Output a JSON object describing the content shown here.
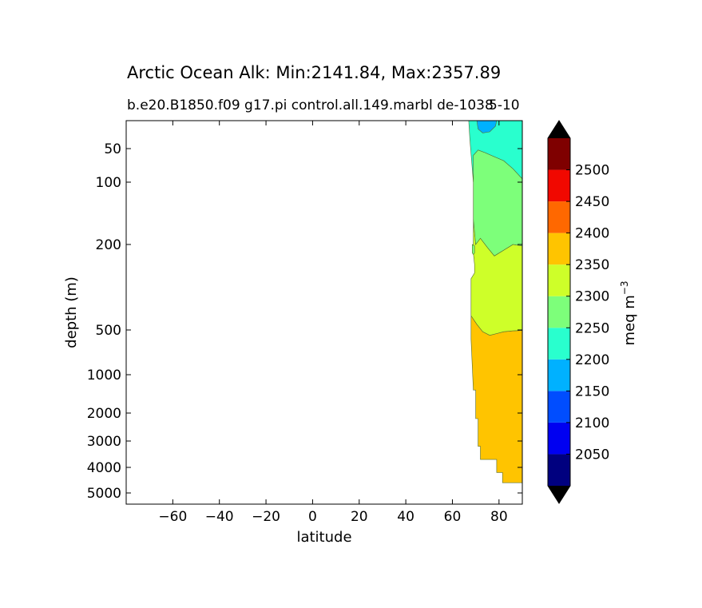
{
  "chart_data": {
    "type": "contour",
    "title": "Arctic Ocean Alk: Min:2141.84, Max:2357.89",
    "subtitle": "b.e20.B1850.f09 g17.pi control.all.149.marbl de-1038",
    "subtitle_overlay": "5-10",
    "xlabel": "latitude",
    "ylabel": "depth (m)",
    "xlim": [
      -80,
      90
    ],
    "x_ticks": [
      -60,
      -40,
      -20,
      0,
      20,
      40,
      60,
      80
    ],
    "x_tick_labels": [
      "−60",
      "−40",
      "−20",
      "0",
      "20",
      "40",
      "60",
      "80"
    ],
    "y_ticks": [
      50,
      100,
      200,
      500,
      1000,
      2000,
      3000,
      4000,
      5000
    ],
    "y_tick_labels": [
      "50",
      "100",
      "200",
      "500",
      "1000",
      "2000",
      "3000",
      "4000",
      "5000"
    ],
    "y_scale": "nonlinear (depth increases downward)",
    "contour_levels": [
      2000,
      2050,
      2100,
      2150,
      2200,
      2250,
      2300,
      2350,
      2400,
      2450,
      2500,
      2550
    ],
    "colorbar": {
      "label": "meq m",
      "label_exponent": "−3",
      "extend": "both",
      "tick_labels": [
        "2050",
        "2100",
        "2150",
        "2200",
        "2250",
        "2300",
        "2350",
        "2400",
        "2450",
        "2500"
      ],
      "colors": [
        "#00007f",
        "#0000f1",
        "#004dff",
        "#00b1ff",
        "#29ffce",
        "#7dff7a",
        "#ceff29",
        "#ffc400",
        "#ff6800",
        "#f10800",
        "#7f0000"
      ],
      "extend_color": "#000000"
    },
    "regions": [
      {
        "band": "2150–2200",
        "color": "#00b1ff",
        "lat_range": [
          70,
          80
        ],
        "depth_range": [
          0,
          30
        ]
      },
      {
        "band": "2200–2250",
        "color": "#29ffce",
        "lat_range": [
          67,
          90
        ],
        "depth_range": [
          0,
          95
        ]
      },
      {
        "band": "2250–2300",
        "color": "#7dff7a",
        "lat_range": [
          69,
          90
        ],
        "depth_range": [
          60,
          200
        ]
      },
      {
        "band": "2300–2350",
        "color": "#ceff29",
        "lat_range": [
          68,
          90
        ],
        "depth_range": [
          70,
          550
        ]
      },
      {
        "band": "2350–2400",
        "color": "#ffc400",
        "lat_range": [
          68,
          90
        ],
        "depth_range": [
          450,
          4600
        ]
      }
    ]
  }
}
